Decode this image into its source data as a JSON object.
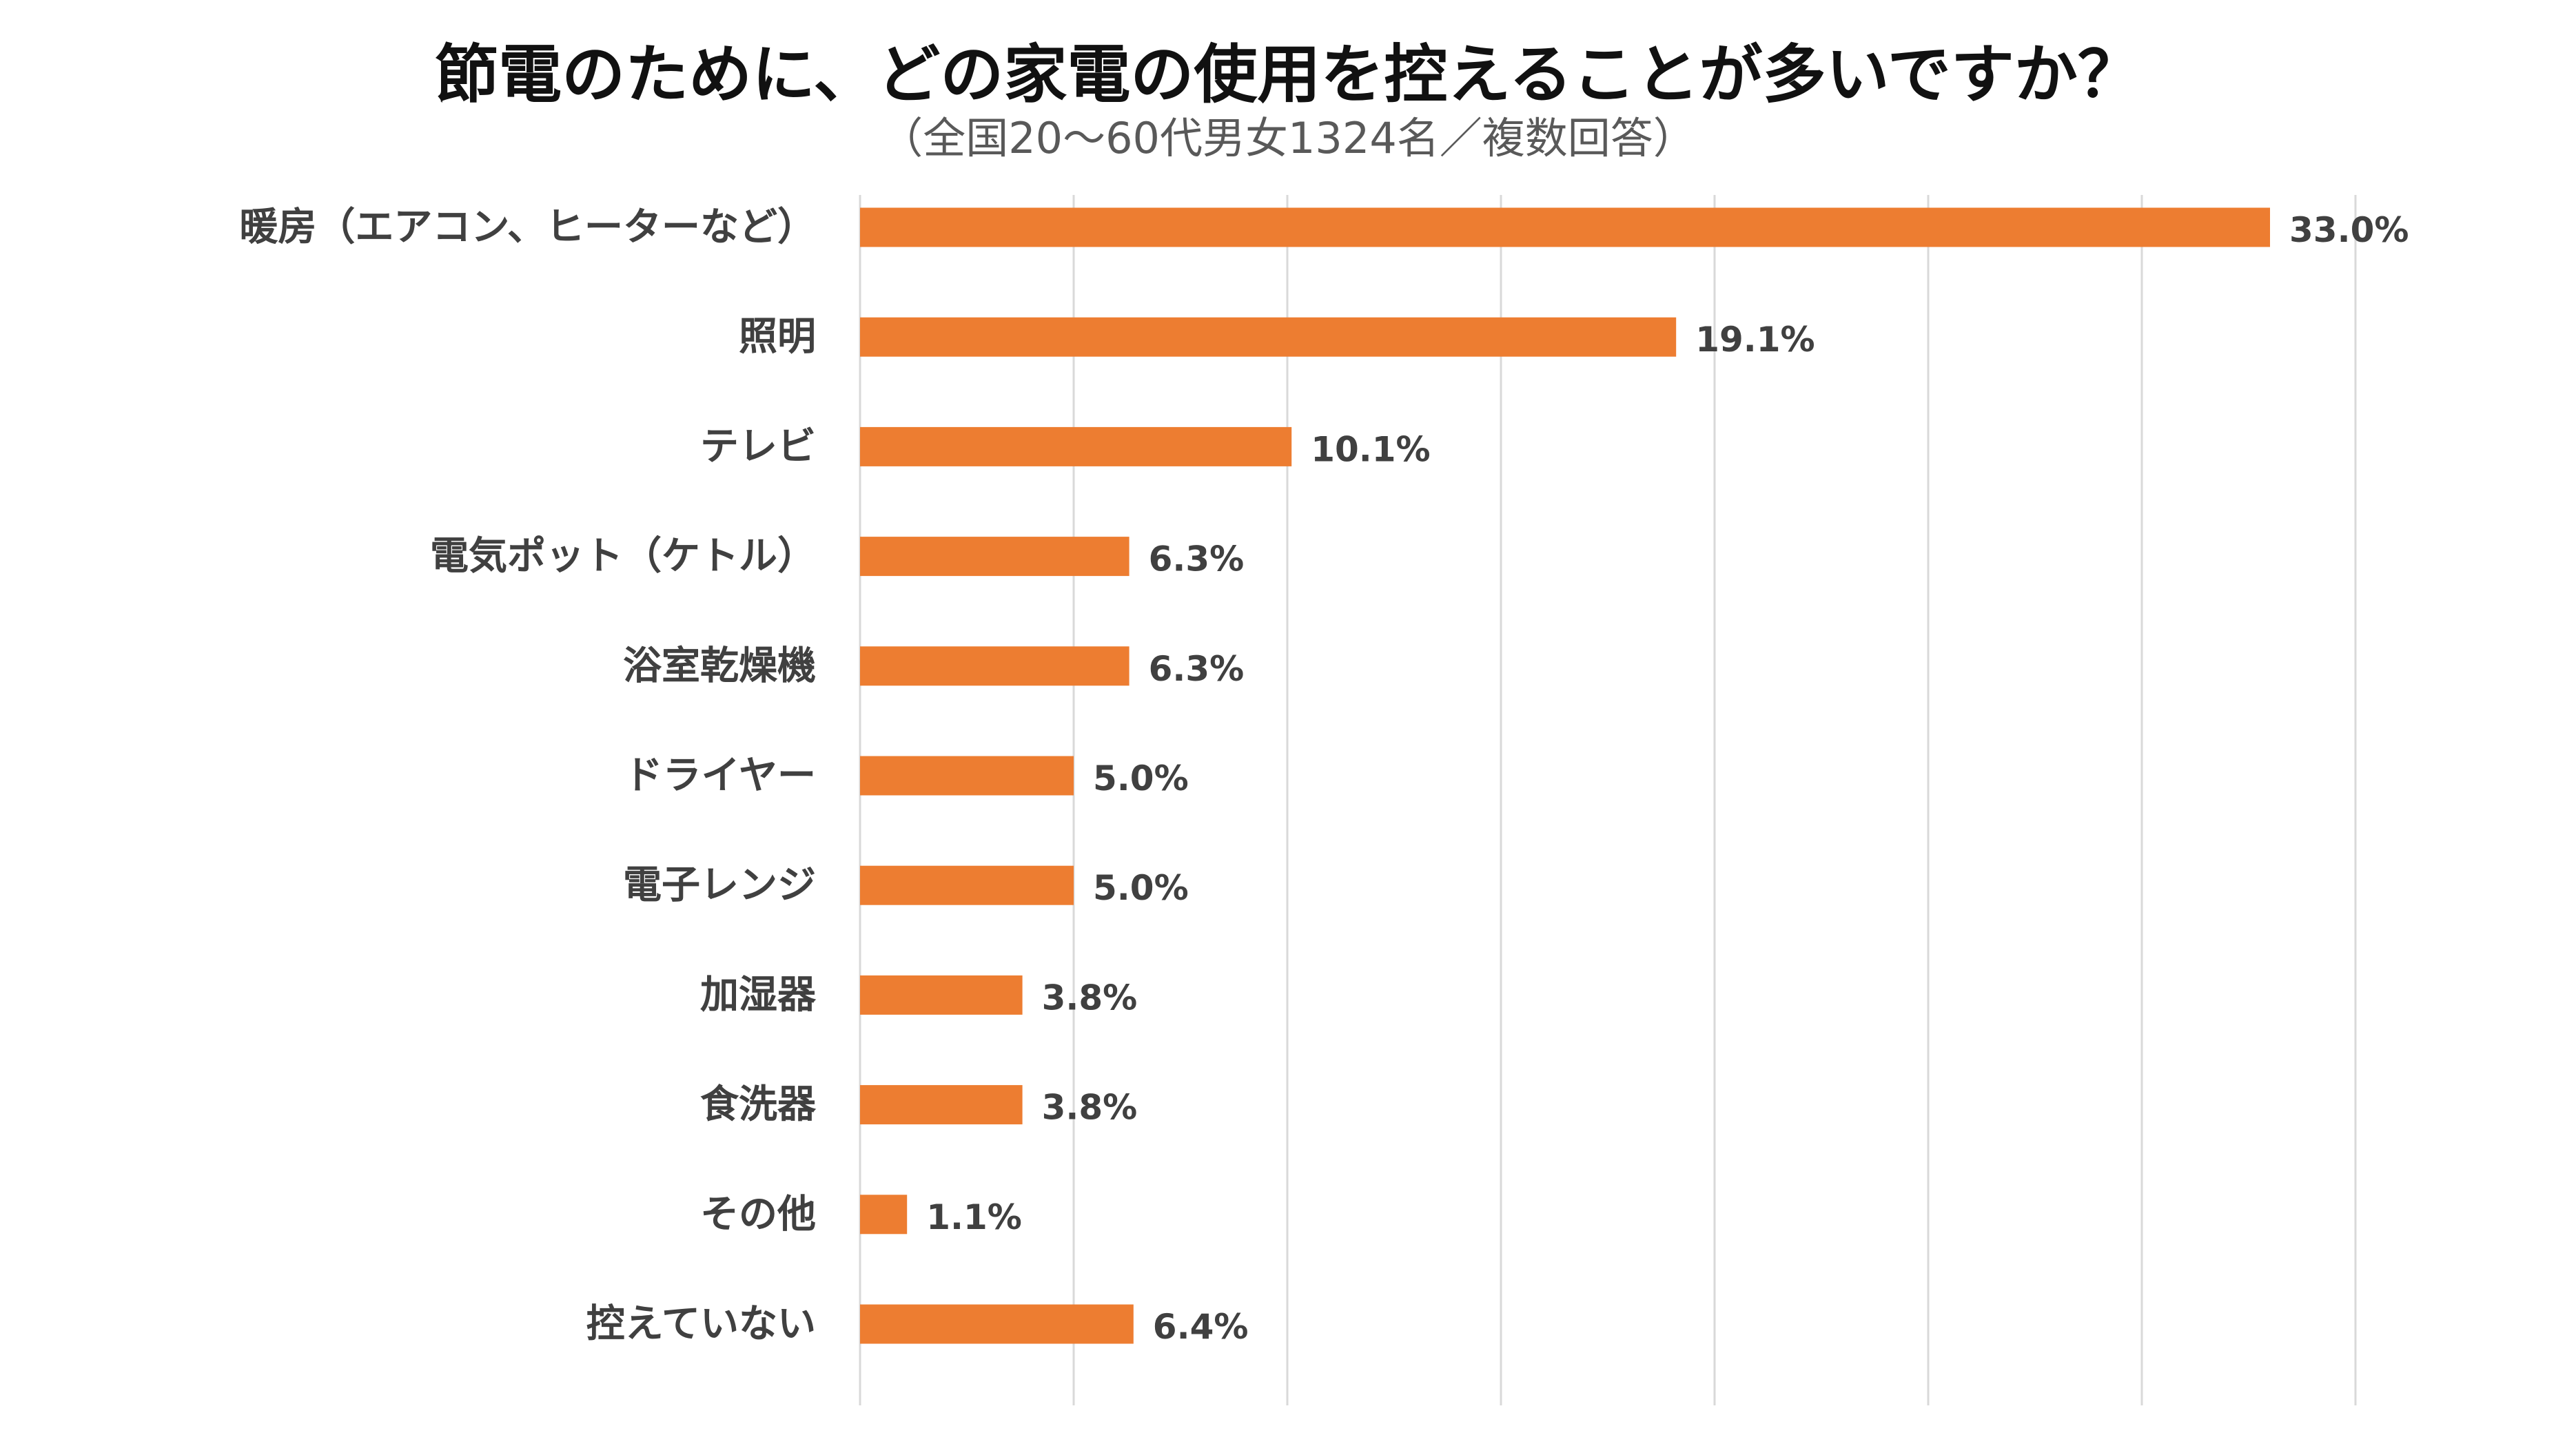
{
  "chart_data": {
    "type": "bar",
    "orientation": "horizontal",
    "title": "節電のために、どの家電の使用を控えることが多いですか？",
    "subtitle": "（全国20～60代男女1324名／複数回答）",
    "categories": [
      "暖房（エアコン、ヒーターなど）",
      "照明",
      "テレビ",
      "電気ポット（ケトル）",
      "浴室乾燥機",
      "ドライヤー",
      "電子レンジ",
      "加湿器",
      "食洗器",
      "その他",
      "控えていない"
    ],
    "values": [
      33.0,
      19.1,
      10.1,
      6.3,
      6.3,
      5.0,
      5.0,
      3.8,
      3.8,
      1.1,
      6.4
    ],
    "value_labels": [
      "33.0%",
      "19.1%",
      "10.1%",
      "6.3%",
      "6.3%",
      "5.0%",
      "5.0%",
      "3.8%",
      "3.8%",
      "1.1%",
      "6.4%"
    ],
    "xlim": [
      0,
      35
    ],
    "grid_step": 5,
    "grid": true,
    "xlabel": "",
    "ylabel": "",
    "bar_color": "#ED7D31",
    "grid_color": "#D9D9D9"
  }
}
